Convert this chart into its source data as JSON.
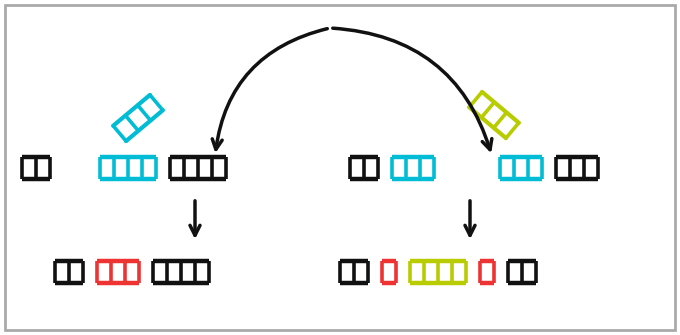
{
  "bg_color": "#ffffff",
  "border_color": "#aaaaaa",
  "black": "#111111",
  "cyan": "#00bcd4",
  "red": "#ee3333",
  "yellow_green": "#b8cc00",
  "figsize": [
    6.8,
    3.35
  ],
  "dpi": 100
}
